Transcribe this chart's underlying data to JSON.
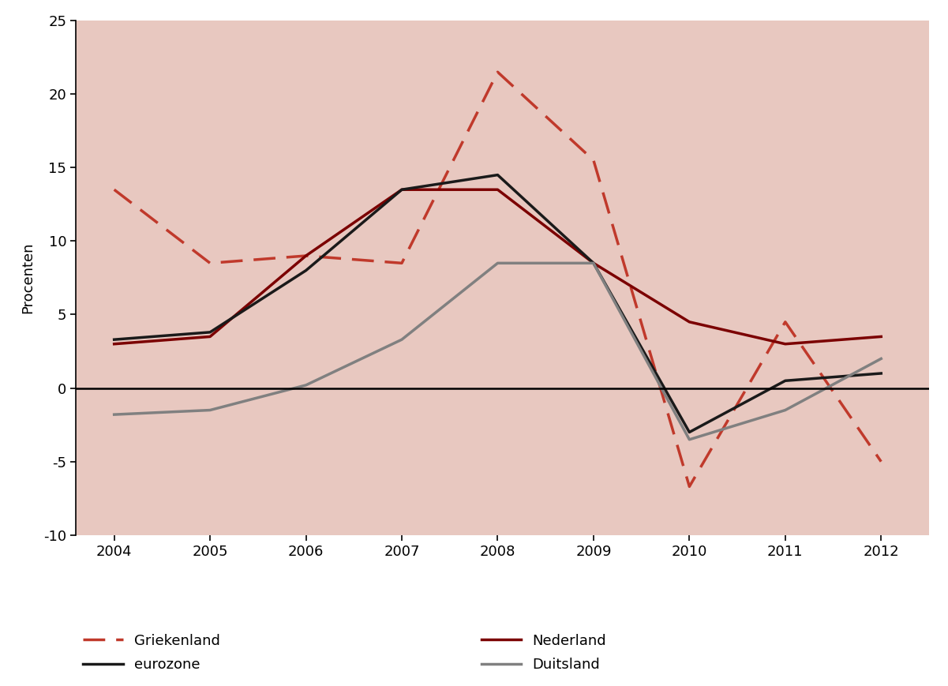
{
  "years": [
    2004,
    2005,
    2006,
    2007,
    2008,
    2009,
    2010,
    2011,
    2012
  ],
  "griekenland": [
    13.5,
    8.5,
    9.0,
    8.5,
    21.5,
    15.5,
    -6.7,
    4.5,
    -5.0
  ],
  "nederland": [
    3.0,
    3.5,
    9.0,
    13.5,
    13.5,
    8.5,
    4.5,
    3.0,
    3.5
  ],
  "eurozone": [
    3.3,
    3.8,
    8.0,
    13.5,
    14.5,
    8.5,
    -3.0,
    0.5,
    1.0
  ],
  "duitsland": [
    -1.8,
    -1.5,
    0.2,
    3.3,
    8.5,
    8.5,
    -3.5,
    -1.5,
    2.0
  ],
  "griekenland_color": "#c0392b",
  "nederland_color": "#7b0000",
  "eurozone_color": "#1a1a1a",
  "duitsland_color": "#808080",
  "background_color": "#e8c8c0",
  "ylim": [
    -10,
    25
  ],
  "yticks": [
    -10,
    -5,
    0,
    5,
    10,
    15,
    20,
    25
  ],
  "ylabel": "Procenten",
  "xlim_left": 2003.6,
  "xlim_right": 2012.5
}
